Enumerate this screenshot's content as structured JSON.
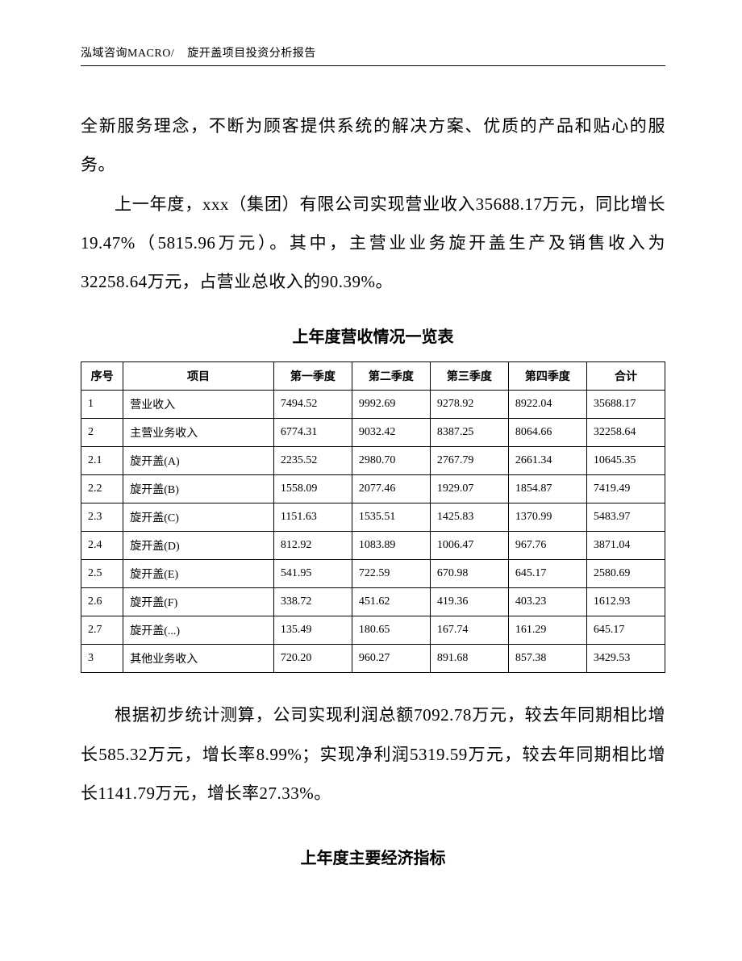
{
  "header": {
    "company": "泓域咨询MACRO/",
    "doc_title": "旋开盖项目投资分析报告"
  },
  "paragraphs": {
    "p1": "全新服务理念，不断为顾客提供系统的解决方案、优质的产品和贴心的服务。",
    "p2": "上一年度，xxx（集团）有限公司实现营业收入35688.17万元，同比增长19.47%（5815.96万元）。其中，主营业业务旋开盖生产及销售收入为32258.64万元，占营业总收入的90.39%。",
    "p3": "根据初步统计测算，公司实现利润总额7092.78万元，较去年同期相比增长585.32万元，增长率8.99%；实现净利润5319.59万元，较去年同期相比增长1141.79万元，增长率27.33%。"
  },
  "table1": {
    "title": "上年度营收情况一览表",
    "headers": [
      "序号",
      "项目",
      "第一季度",
      "第二季度",
      "第三季度",
      "第四季度",
      "合计"
    ],
    "rows": [
      [
        "1",
        "营业收入",
        "7494.52",
        "9992.69",
        "9278.92",
        "8922.04",
        "35688.17"
      ],
      [
        "2",
        "主营业务收入",
        "6774.31",
        "9032.42",
        "8387.25",
        "8064.66",
        "32258.64"
      ],
      [
        "2.1",
        "旋开盖(A)",
        "2235.52",
        "2980.70",
        "2767.79",
        "2661.34",
        "10645.35"
      ],
      [
        "2.2",
        "旋开盖(B)",
        "1558.09",
        "2077.46",
        "1929.07",
        "1854.87",
        "7419.49"
      ],
      [
        "2.3",
        "旋开盖(C)",
        "1151.63",
        "1535.51",
        "1425.83",
        "1370.99",
        "5483.97"
      ],
      [
        "2.4",
        "旋开盖(D)",
        "812.92",
        "1083.89",
        "1006.47",
        "967.76",
        "3871.04"
      ],
      [
        "2.5",
        "旋开盖(E)",
        "541.95",
        "722.59",
        "670.98",
        "645.17",
        "2580.69"
      ],
      [
        "2.6",
        "旋开盖(F)",
        "338.72",
        "451.62",
        "419.36",
        "403.23",
        "1612.93"
      ],
      [
        "2.7",
        "旋开盖(...)",
        "135.49",
        "180.65",
        "167.74",
        "161.29",
        "645.17"
      ],
      [
        "3",
        "其他业务收入",
        "720.20",
        "960.27",
        "891.68",
        "857.38",
        "3429.53"
      ]
    ]
  },
  "section2_title": "上年度主要经济指标"
}
